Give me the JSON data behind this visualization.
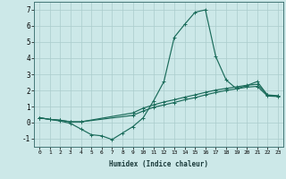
{
  "xlabel": "Humidex (Indice chaleur)",
  "background_color": "#cce8e8",
  "grid_color": "#aacccc",
  "line_color": "#1a6b5a",
  "xlim": [
    -0.5,
    23.5
  ],
  "ylim": [
    -1.5,
    7.5
  ],
  "xticks": [
    0,
    1,
    2,
    3,
    4,
    5,
    6,
    7,
    8,
    9,
    10,
    11,
    12,
    13,
    14,
    15,
    16,
    17,
    18,
    19,
    20,
    21,
    22,
    23
  ],
  "yticks": [
    -1,
    0,
    1,
    2,
    3,
    4,
    5,
    6,
    7
  ],
  "curve1_x": [
    0,
    1,
    2,
    3,
    4,
    5,
    6,
    7,
    8,
    9,
    10,
    11,
    12,
    13,
    14,
    15,
    16,
    17,
    18,
    19,
    20,
    21,
    22,
    23
  ],
  "curve1_y": [
    0.3,
    0.2,
    0.1,
    -0.05,
    -0.4,
    -0.75,
    -0.82,
    -1.05,
    -0.65,
    -0.25,
    0.3,
    1.35,
    2.55,
    5.3,
    6.1,
    6.85,
    7.0,
    4.1,
    2.65,
    2.1,
    2.3,
    2.55,
    1.7,
    1.65
  ],
  "curve2_x": [
    0,
    1,
    2,
    3,
    4,
    9,
    10,
    11,
    12,
    13,
    14,
    15,
    16,
    17,
    18,
    19,
    20,
    21,
    22,
    23
  ],
  "curve2_y": [
    0.3,
    0.2,
    0.15,
    0.05,
    0.05,
    0.45,
    0.72,
    0.95,
    1.1,
    1.25,
    1.42,
    1.55,
    1.72,
    1.87,
    2.0,
    2.1,
    2.2,
    2.25,
    1.65,
    1.62
  ],
  "curve3_x": [
    0,
    1,
    2,
    3,
    4,
    9,
    10,
    11,
    12,
    13,
    14,
    15,
    16,
    17,
    18,
    19,
    20,
    21,
    22,
    23
  ],
  "curve3_y": [
    0.3,
    0.2,
    0.15,
    0.05,
    0.05,
    0.6,
    0.9,
    1.1,
    1.28,
    1.42,
    1.58,
    1.72,
    1.88,
    2.02,
    2.12,
    2.22,
    2.32,
    2.38,
    1.72,
    1.67
  ]
}
